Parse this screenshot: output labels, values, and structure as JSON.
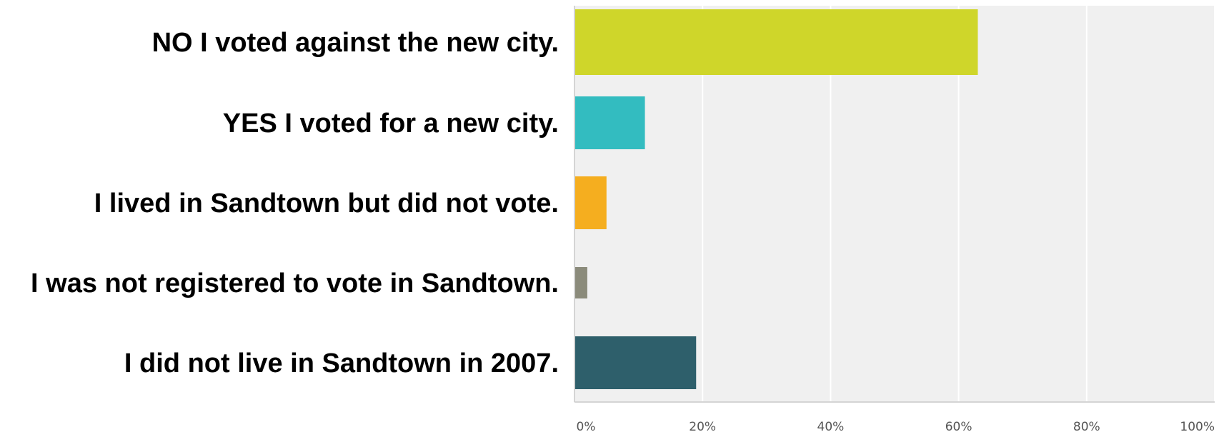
{
  "chart_data": {
    "type": "bar",
    "orientation": "horizontal",
    "categories": [
      "NO I voted against the new city.",
      "YES I voted for a new city.",
      "I lived in Sandtown but did not vote.",
      "I was not registered to vote in Sandtown.",
      "I did not live in Sandtown in 2007."
    ],
    "values": [
      63,
      11,
      5,
      2,
      19
    ],
    "bar_colors": [
      "#cfd62a",
      "#33bcc0",
      "#f5ae1f",
      "#8b8b7b",
      "#2e5f6b"
    ],
    "xlim": [
      0,
      100
    ],
    "x_ticks": [
      0,
      20,
      40,
      60,
      80,
      100
    ],
    "x_tick_labels": [
      "0%",
      "20%",
      "40%",
      "60%",
      "80%",
      "100%"
    ],
    "grid": "vertical",
    "plot_background": "#f0f0f0",
    "gridline_color": "#ffffff"
  }
}
